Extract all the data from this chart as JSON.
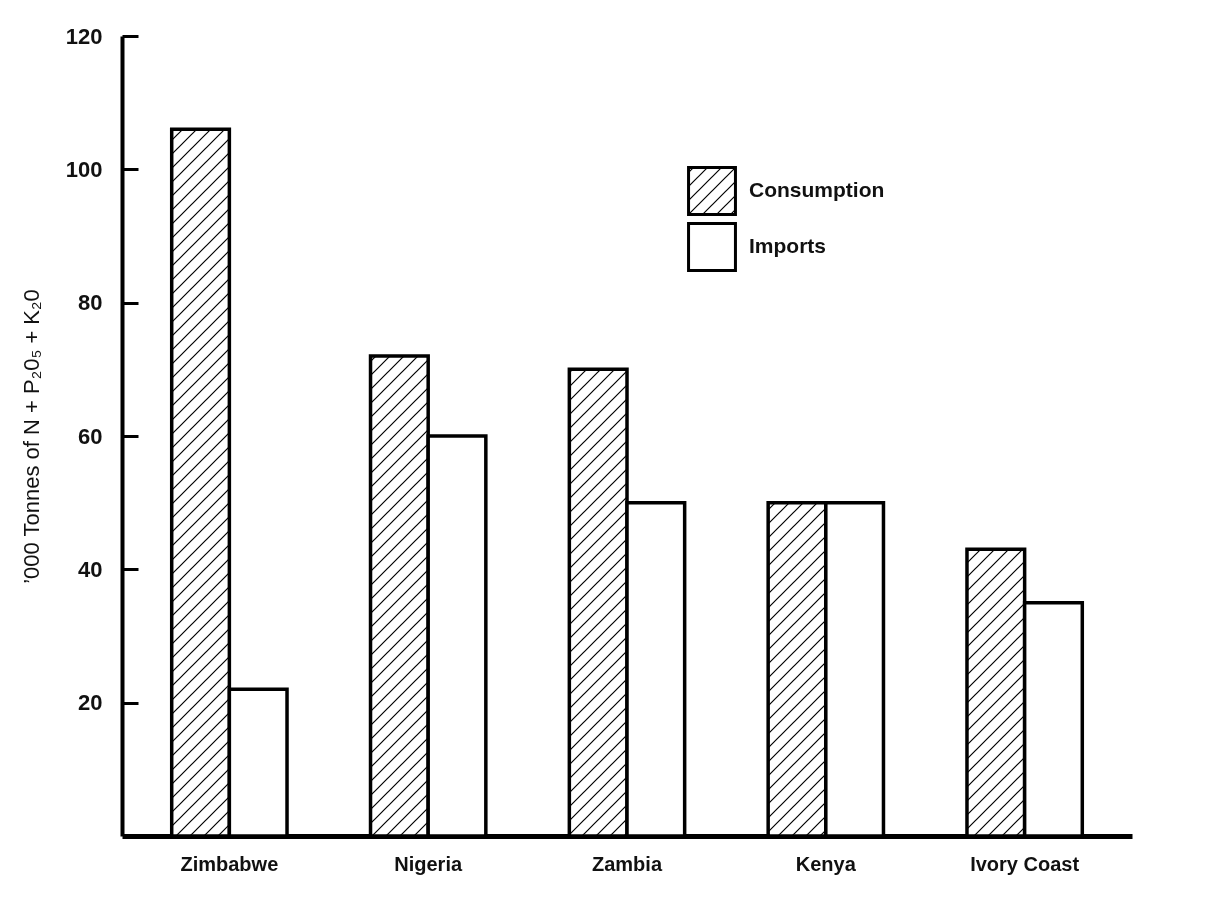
{
  "chart_data": {
    "type": "bar",
    "ylabel": "’000 Tonnes of N + P₂0₅ + K₂0",
    "categories": [
      "Zimbabwe",
      "Nigeria",
      "Zambia",
      "Kenya",
      "Ivory Coast"
    ],
    "series": [
      {
        "name": "Consumption",
        "color": "#000000",
        "values": [
          106,
          72,
          70,
          50,
          43
        ]
      },
      {
        "name": "Imports",
        "color": "#ffffff",
        "values": [
          22,
          60,
          50,
          50,
          35
        ]
      }
    ],
    "ylim": [
      0,
      120
    ],
    "yticks": [
      20,
      40,
      60,
      80,
      100,
      120
    ],
    "legend": "top right",
    "grid": false
  }
}
